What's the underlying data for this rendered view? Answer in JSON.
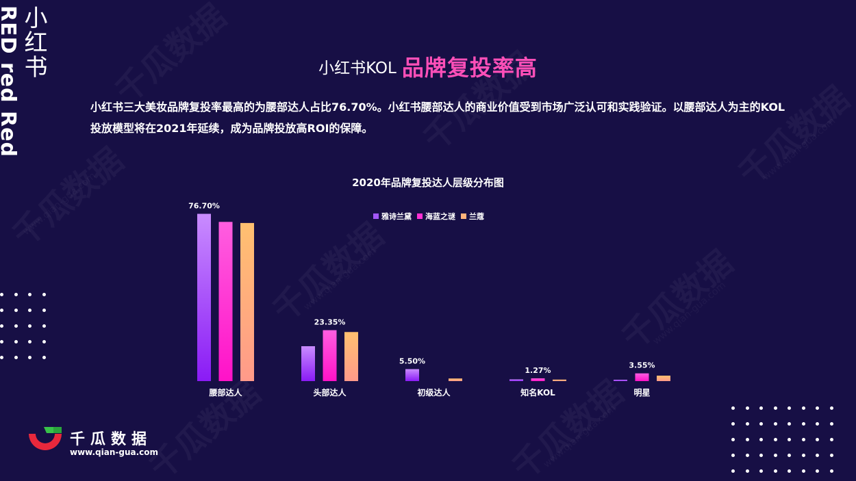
{
  "side": {
    "en": "RED red Red",
    "cn": "小红书"
  },
  "title": {
    "part1": "小红书KOL",
    "part2": "品牌复投率高"
  },
  "description": "小红书三大美妆品牌复投率最高的为腰部达人占比76.70%。小红书腰部达人的商业价值受到市场广泛认可和实践验证。以腰部达人为主的KOL投放模型将在2021年延续，成为品牌投放高ROI的保障。",
  "logo": {
    "name": "千瓜数据",
    "url": "www.qian-gua.com"
  },
  "watermark": {
    "text": "千瓜数据",
    "url": "www.qian-gua.com"
  },
  "colors": {
    "background": "#170f45",
    "accent": "#ff4fb8",
    "series_1_top": "#c98cff",
    "series_1_bottom": "#8a1bf5",
    "series_2_top": "#ff5ee0",
    "series_2_bottom": "#ff12c8",
    "series_3_top": "#ffc070",
    "series_3_bottom": "#ff9a8a"
  },
  "chart_data": {
    "type": "bar",
    "title": "2020年品牌复投达人层级分布图",
    "categories": [
      "腰部达人",
      "头部达人",
      "初级达人",
      "知名KOL",
      "明星"
    ],
    "series": [
      {
        "name": "雅诗兰黛",
        "values": [
          76.7,
          16.0,
          5.5,
          0.8,
          0.6
        ]
      },
      {
        "name": "海蓝之谜",
        "values": [
          73.0,
          23.35,
          0.0,
          1.27,
          3.55
        ]
      },
      {
        "name": "兰蔻",
        "values": [
          72.5,
          22.5,
          1.2,
          0.7,
          2.5
        ]
      }
    ],
    "data_labels": [
      {
        "category": "腰部达人",
        "text": "76.70%"
      },
      {
        "category": "头部达人",
        "text": "23.35%"
      },
      {
        "category": "初级达人",
        "text": "5.50%"
      },
      {
        "category": "知名KOL",
        "text": "1.27%"
      },
      {
        "category": "明星",
        "text": "3.55%"
      }
    ],
    "ylim": [
      0,
      80
    ],
    "grid": false,
    "legend": "top-center"
  }
}
